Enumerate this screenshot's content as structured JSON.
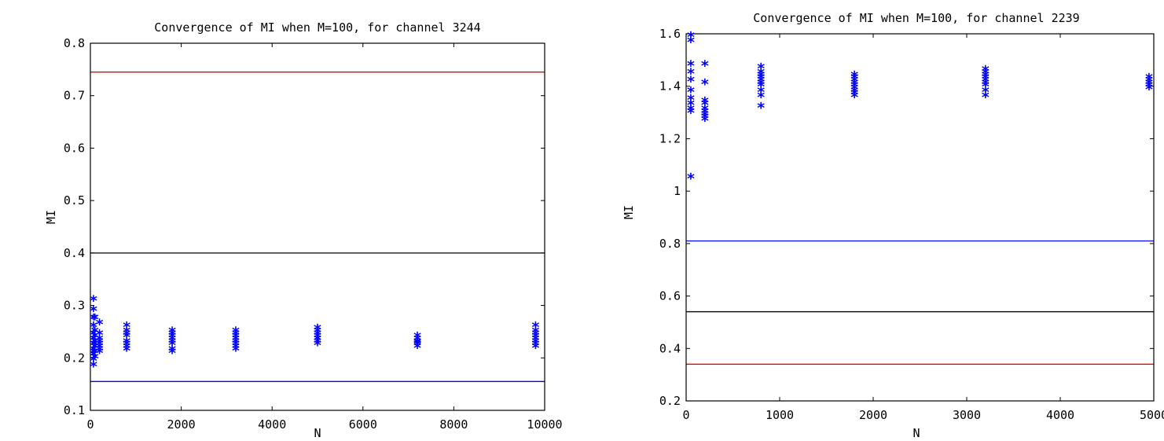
{
  "chart_data": [
    {
      "type": "scatter",
      "title": "Convergence of MI when M=100, for channel 3244",
      "xlabel": "N",
      "ylabel": "MI",
      "xlim": [
        0,
        10000
      ],
      "ylim": [
        0.1,
        0.8
      ],
      "xticks": [
        "0",
        "2000",
        "4000",
        "6000",
        "8000",
        "10000"
      ],
      "yticks": [
        "0.1",
        "0.2",
        "0.3",
        "0.4",
        "0.5",
        "0.6",
        "0.7",
        "0.8"
      ],
      "grid": false,
      "marker": "*",
      "marker_color": "#0000ff",
      "hlines": [
        {
          "y": 0.745,
          "color": "#ff0000"
        },
        {
          "y": 0.4,
          "color": "#000000"
        },
        {
          "y": 0.155,
          "color": "#0000ff"
        }
      ],
      "points": {
        "x": [
          50,
          50,
          50,
          50,
          50,
          50,
          50,
          50,
          50,
          50,
          50,
          50,
          100,
          100,
          100,
          100,
          100,
          100,
          100,
          100,
          200,
          200,
          200,
          200,
          200,
          200,
          200,
          200,
          800,
          800,
          800,
          800,
          800,
          800,
          800,
          800,
          1800,
          1800,
          1800,
          1800,
          1800,
          1800,
          1800,
          1800,
          3200,
          3200,
          3200,
          3200,
          3200,
          3200,
          3200,
          3200,
          5000,
          5000,
          5000,
          5000,
          5000,
          5000,
          5000,
          5000,
          7200,
          7200,
          7200,
          7200,
          7200,
          7200,
          9800,
          9800,
          9800,
          9800,
          9800,
          9800,
          9800,
          9800
        ],
        "y": [
          0.31,
          0.29,
          0.275,
          0.26,
          0.245,
          0.235,
          0.225,
          0.215,
          0.21,
          0.205,
          0.195,
          0.185,
          0.275,
          0.25,
          0.24,
          0.23,
          0.225,
          0.22,
          0.21,
          0.2,
          0.265,
          0.245,
          0.235,
          0.23,
          0.225,
          0.22,
          0.215,
          0.21,
          0.26,
          0.25,
          0.245,
          0.24,
          0.23,
          0.225,
          0.22,
          0.215,
          0.25,
          0.245,
          0.24,
          0.235,
          0.23,
          0.225,
          0.215,
          0.21,
          0.25,
          0.245,
          0.24,
          0.235,
          0.23,
          0.225,
          0.22,
          0.215,
          0.255,
          0.25,
          0.245,
          0.24,
          0.235,
          0.23,
          0.225,
          0.235,
          0.24,
          0.235,
          0.23,
          0.225,
          0.22,
          0.228,
          0.26,
          0.25,
          0.245,
          0.24,
          0.235,
          0.23,
          0.225,
          0.22
        ]
      }
    },
    {
      "type": "scatter",
      "title": "Convergence of MI when M=100, for channel 2239",
      "xlabel": "N",
      "ylabel": "MI",
      "xlim": [
        0,
        5000
      ],
      "ylim": [
        0.2,
        1.6
      ],
      "xticks": [
        "0",
        "1000",
        "2000",
        "3000",
        "4000",
        "5000"
      ],
      "yticks": [
        "0.2",
        "0.4",
        "0.6",
        "0.8",
        "1",
        "1.2",
        "1.4",
        "1.6"
      ],
      "grid": false,
      "marker": "*",
      "marker_color": "#0000ff",
      "hlines": [
        {
          "y": 0.81,
          "color": "#0000ff"
        },
        {
          "y": 0.54,
          "color": "#000000"
        },
        {
          "y": 0.34,
          "color": "#ff0000"
        }
      ],
      "points": {
        "x": [
          50,
          50,
          50,
          50,
          50,
          50,
          50,
          50,
          50,
          50,
          50,
          200,
          200,
          200,
          200,
          200,
          200,
          200,
          200,
          200,
          800,
          800,
          800,
          800,
          800,
          800,
          800,
          800,
          800,
          800,
          1800,
          1800,
          1800,
          1800,
          1800,
          1800,
          1800,
          1800,
          1800,
          3200,
          3200,
          3200,
          3200,
          3200,
          3200,
          3200,
          3200,
          3200,
          4970,
          4970,
          4970,
          4970,
          4970
        ],
        "y": [
          1.59,
          1.57,
          1.48,
          1.45,
          1.42,
          1.38,
          1.35,
          1.33,
          1.31,
          1.3,
          1.05,
          1.48,
          1.41,
          1.34,
          1.33,
          1.31,
          1.3,
          1.29,
          1.28,
          1.27,
          1.47,
          1.45,
          1.44,
          1.43,
          1.42,
          1.41,
          1.4,
          1.38,
          1.36,
          1.32,
          1.44,
          1.43,
          1.42,
          1.41,
          1.4,
          1.39,
          1.38,
          1.37,
          1.36,
          1.46,
          1.45,
          1.44,
          1.43,
          1.42,
          1.41,
          1.4,
          1.38,
          1.36,
          1.43,
          1.42,
          1.41,
          1.4,
          1.39
        ]
      }
    }
  ]
}
